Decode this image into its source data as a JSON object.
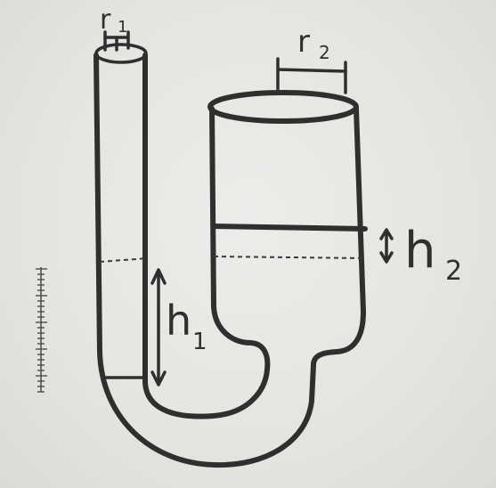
{
  "labels": {
    "r1": "r",
    "r1_sub": "1",
    "r2": "r",
    "r2_sub": "2",
    "h1": "h",
    "h1_sub": "1",
    "h2": "h",
    "h2_sub": "2"
  },
  "colors": {
    "ink": "#2f2f30",
    "paper": "#e6e7e2"
  }
}
